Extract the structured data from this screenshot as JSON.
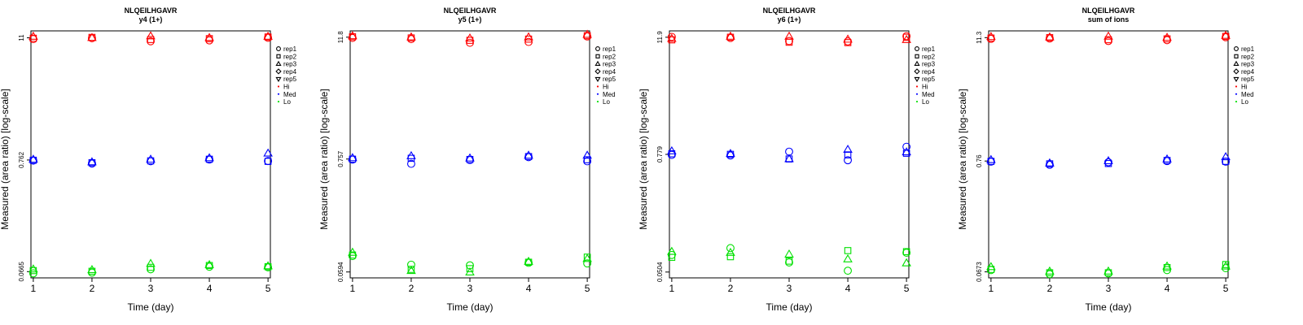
{
  "chart_data": [
    {
      "type": "scatter",
      "title": "NLQEILHGAVR",
      "subtitle": "y4 (1+)",
      "xlabel": "Time (day)",
      "ylabel": "Measured (area ratio) [log-scale]",
      "x_ticks": [
        "1",
        "2",
        "3",
        "4",
        "5"
      ],
      "y_ticks": [
        "0.0665",
        "0.762",
        "11"
      ],
      "y_scale": "log",
      "ylim": [
        0.058,
        12.8
      ],
      "grid": false,
      "legend_position": "right",
      "series": [
        {
          "group": "Hi",
          "replicate": "rep1",
          "x": [
            1,
            2,
            3,
            4,
            5
          ],
          "y": [
            10.7,
            10.9,
            10.2,
            10.4,
            11.0
          ]
        },
        {
          "group": "Hi",
          "replicate": "rep2",
          "x": [
            1,
            2,
            3,
            4,
            5
          ],
          "y": [
            10.9,
            11.1,
            10.6,
            10.8,
            11.2
          ]
        },
        {
          "group": "Hi",
          "replicate": "rep3",
          "x": [
            1,
            2,
            3,
            4,
            5
          ],
          "y": [
            11.3,
            11.0,
            11.4,
            11.0,
            11.3
          ]
        },
        {
          "group": "Med",
          "replicate": "rep1",
          "x": [
            1,
            2,
            3,
            4,
            5
          ],
          "y": [
            0.752,
            0.705,
            0.742,
            0.77,
            0.745
          ]
        },
        {
          "group": "Med",
          "replicate": "rep2",
          "x": [
            1,
            2,
            3,
            4,
            5
          ],
          "y": [
            0.758,
            0.718,
            0.748,
            0.775,
            0.74
          ]
        },
        {
          "group": "Med",
          "replicate": "rep3",
          "x": [
            1,
            2,
            3,
            4,
            5
          ],
          "y": [
            0.77,
            0.728,
            0.77,
            0.795,
            0.88
          ]
        },
        {
          "group": "Lo",
          "replicate": "rep1",
          "x": [
            1,
            2,
            3,
            4,
            5
          ],
          "y": [
            0.064,
            0.065,
            0.07,
            0.074,
            0.073
          ]
        },
        {
          "group": "Lo",
          "replicate": "rep2",
          "x": [
            1,
            2,
            3,
            4,
            5
          ],
          "y": [
            0.068,
            0.067,
            0.073,
            0.076,
            0.074
          ]
        },
        {
          "group": "Lo",
          "replicate": "rep3",
          "x": [
            1,
            2,
            3,
            4,
            5
          ],
          "y": [
            0.07,
            0.069,
            0.079,
            0.077,
            0.075
          ]
        }
      ]
    },
    {
      "type": "scatter",
      "title": "NLQEILHGAVR",
      "subtitle": "y5 (1+)",
      "xlabel": "Time (day)",
      "ylabel": "Measured (area ratio) [log-scale]",
      "x_ticks": [
        "1",
        "2",
        "3",
        "4",
        "5"
      ],
      "y_ticks": [
        "0.0594",
        "0.757",
        "11.8"
      ],
      "y_scale": "log",
      "ylim": [
        0.052,
        13.6
      ],
      "grid": false,
      "legend_position": "right",
      "series": [
        {
          "group": "Hi",
          "replicate": "rep1",
          "x": [
            1,
            2,
            3,
            4,
            5
          ],
          "y": [
            11.6,
            11.3,
            10.4,
            10.6,
            12.0
          ]
        },
        {
          "group": "Hi",
          "replicate": "rep2",
          "x": [
            1,
            2,
            3,
            4,
            5
          ],
          "y": [
            11.9,
            11.6,
            11.0,
            11.3,
            12.2
          ]
        },
        {
          "group": "Hi",
          "replicate": "rep3",
          "x": [
            1,
            2,
            3,
            4,
            5
          ],
          "y": [
            12.1,
            11.8,
            11.5,
            11.8,
            12.5
          ]
        },
        {
          "group": "Med",
          "replicate": "rep1",
          "x": [
            1,
            2,
            3,
            4,
            5
          ],
          "y": [
            0.748,
            0.68,
            0.74,
            0.79,
            0.72
          ]
        },
        {
          "group": "Med",
          "replicate": "rep2",
          "x": [
            1,
            2,
            3,
            4,
            5
          ],
          "y": [
            0.755,
            0.77,
            0.75,
            0.8,
            0.745
          ]
        },
        {
          "group": "Med",
          "replicate": "rep3",
          "x": [
            1,
            2,
            3,
            4,
            5
          ],
          "y": [
            0.775,
            0.81,
            0.77,
            0.82,
            0.82
          ]
        },
        {
          "group": "Lo",
          "replicate": "rep1",
          "x": [
            1,
            2,
            3,
            4,
            5
          ],
          "y": [
            0.085,
            0.07,
            0.069,
            0.073,
            0.072
          ]
        },
        {
          "group": "Lo",
          "replicate": "rep2",
          "x": [
            1,
            2,
            3,
            4,
            5
          ],
          "y": [
            0.087,
            0.063,
            0.064,
            0.074,
            0.083
          ]
        },
        {
          "group": "Lo",
          "replicate": "rep3",
          "x": [
            1,
            2,
            3,
            4,
            5
          ],
          "y": [
            0.092,
            0.061,
            0.059,
            0.075,
            0.08
          ]
        }
      ]
    },
    {
      "type": "scatter",
      "title": "NLQEILHGAVR",
      "subtitle": "y6 (1+)",
      "xlabel": "Time (day)",
      "ylabel": "Measured (area ratio) [log-scale]",
      "x_ticks": [
        "1",
        "2",
        "3",
        "4",
        "5"
      ],
      "y_ticks": [
        "0.0504",
        "0.779",
        "11.9"
      ],
      "y_scale": "log",
      "ylim": [
        0.044,
        13.8
      ],
      "grid": false,
      "legend_position": "right",
      "series": [
        {
          "group": "Hi",
          "replicate": "rep1",
          "x": [
            1,
            2,
            3,
            4,
            5
          ],
          "y": [
            12.0,
            11.7,
            10.9,
            10.8,
            12.2
          ]
        },
        {
          "group": "Hi",
          "replicate": "rep2",
          "x": [
            1,
            2,
            3,
            4,
            5
          ],
          "y": [
            11.2,
            11.9,
            10.6,
            10.5,
            11.9
          ]
        },
        {
          "group": "Hi",
          "replicate": "rep3",
          "x": [
            1,
            2,
            3,
            4,
            5
          ],
          "y": [
            11.5,
            12.1,
            12.1,
            11.3,
            11.2
          ]
        },
        {
          "group": "Med",
          "replicate": "rep1",
          "x": [
            1,
            2,
            3,
            4,
            5
          ],
          "y": [
            0.77,
            0.76,
            0.83,
            0.68,
            0.93
          ]
        },
        {
          "group": "Med",
          "replicate": "rep2",
          "x": [
            1,
            2,
            3,
            4,
            5
          ],
          "y": [
            0.79,
            0.78,
            0.7,
            0.77,
            0.8
          ]
        },
        {
          "group": "Med",
          "replicate": "rep3",
          "x": [
            1,
            2,
            3,
            4,
            5
          ],
          "y": [
            0.84,
            0.79,
            0.7,
            0.87,
            0.82
          ]
        },
        {
          "group": "Lo",
          "replicate": "rep1",
          "x": [
            1,
            2,
            3,
            4,
            5
          ],
          "y": [
            0.075,
            0.088,
            0.063,
            0.052,
            0.079
          ]
        },
        {
          "group": "Lo",
          "replicate": "rep2",
          "x": [
            1,
            2,
            3,
            4,
            5
          ],
          "y": [
            0.071,
            0.072,
            0.065,
            0.083,
            0.081
          ]
        },
        {
          "group": "Lo",
          "replicate": "rep3",
          "x": [
            1,
            2,
            3,
            4,
            5
          ],
          "y": [
            0.081,
            0.079,
            0.076,
            0.068,
            0.062
          ]
        }
      ]
    },
    {
      "type": "scatter",
      "title": "NLQEILHGAVR",
      "subtitle": "sum of ions",
      "xlabel": "Time (day)",
      "ylabel": "Measured (area ratio) [log-scale]",
      "x_ticks": [
        "1",
        "2",
        "3",
        "4",
        "5"
      ],
      "y_ticks": [
        "0.0673",
        "0.76",
        "11.3"
      ],
      "y_scale": "log",
      "ylim": [
        0.059,
        13.1
      ],
      "grid": false,
      "legend_position": "right",
      "series": [
        {
          "group": "Hi",
          "replicate": "rep1",
          "x": [
            1,
            2,
            3,
            4,
            5
          ],
          "y": [
            11.0,
            11.1,
            10.5,
            10.7,
            11.4
          ]
        },
        {
          "group": "Hi",
          "replicate": "rep2",
          "x": [
            1,
            2,
            3,
            4,
            5
          ],
          "y": [
            11.2,
            11.3,
            10.8,
            11.0,
            11.6
          ]
        },
        {
          "group": "Hi",
          "replicate": "rep3",
          "x": [
            1,
            2,
            3,
            4,
            5
          ],
          "y": [
            11.5,
            11.4,
            11.6,
            11.3,
            11.8
          ]
        },
        {
          "group": "Med",
          "replicate": "rep1",
          "x": [
            1,
            2,
            3,
            4,
            5
          ],
          "y": [
            0.75,
            0.7,
            0.74,
            0.76,
            0.75
          ]
        },
        {
          "group": "Med",
          "replicate": "rep2",
          "x": [
            1,
            2,
            3,
            4,
            5
          ],
          "y": [
            0.755,
            0.715,
            0.72,
            0.77,
            0.755
          ]
        },
        {
          "group": "Med",
          "replicate": "rep3",
          "x": [
            1,
            2,
            3,
            4,
            5
          ],
          "y": [
            0.78,
            0.725,
            0.76,
            0.79,
            0.83
          ]
        },
        {
          "group": "Lo",
          "replicate": "rep1",
          "x": [
            1,
            2,
            3,
            4,
            5
          ],
          "y": [
            0.07,
            0.064,
            0.065,
            0.07,
            0.073
          ]
        },
        {
          "group": "Lo",
          "replicate": "rep2",
          "x": [
            1,
            2,
            3,
            4,
            5
          ],
          "y": [
            0.071,
            0.066,
            0.066,
            0.074,
            0.079
          ]
        },
        {
          "group": "Lo",
          "replicate": "rep3",
          "x": [
            1,
            2,
            3,
            4,
            5
          ],
          "y": [
            0.075,
            0.068,
            0.068,
            0.076,
            0.076
          ]
        }
      ]
    }
  ],
  "legend": {
    "items": [
      {
        "label": "rep1",
        "shape": "circle",
        "color": "#000000"
      },
      {
        "label": "rep2",
        "shape": "square",
        "color": "#000000"
      },
      {
        "label": "rep3",
        "shape": "triangle",
        "color": "#000000"
      },
      {
        "label": "rep4",
        "shape": "diamond",
        "color": "#000000"
      },
      {
        "label": "rep5",
        "shape": "triangle-down",
        "color": "#000000"
      },
      {
        "label": "Hi",
        "shape": "dot",
        "color": "#ff0000"
      },
      {
        "label": "Med",
        "shape": "dot",
        "color": "#0000ff"
      },
      {
        "label": "Lo",
        "shape": "dot",
        "color": "#00e000"
      }
    ]
  },
  "colors": {
    "Hi": "#ff0000",
    "Med": "#0000ff",
    "Lo": "#00e000"
  }
}
